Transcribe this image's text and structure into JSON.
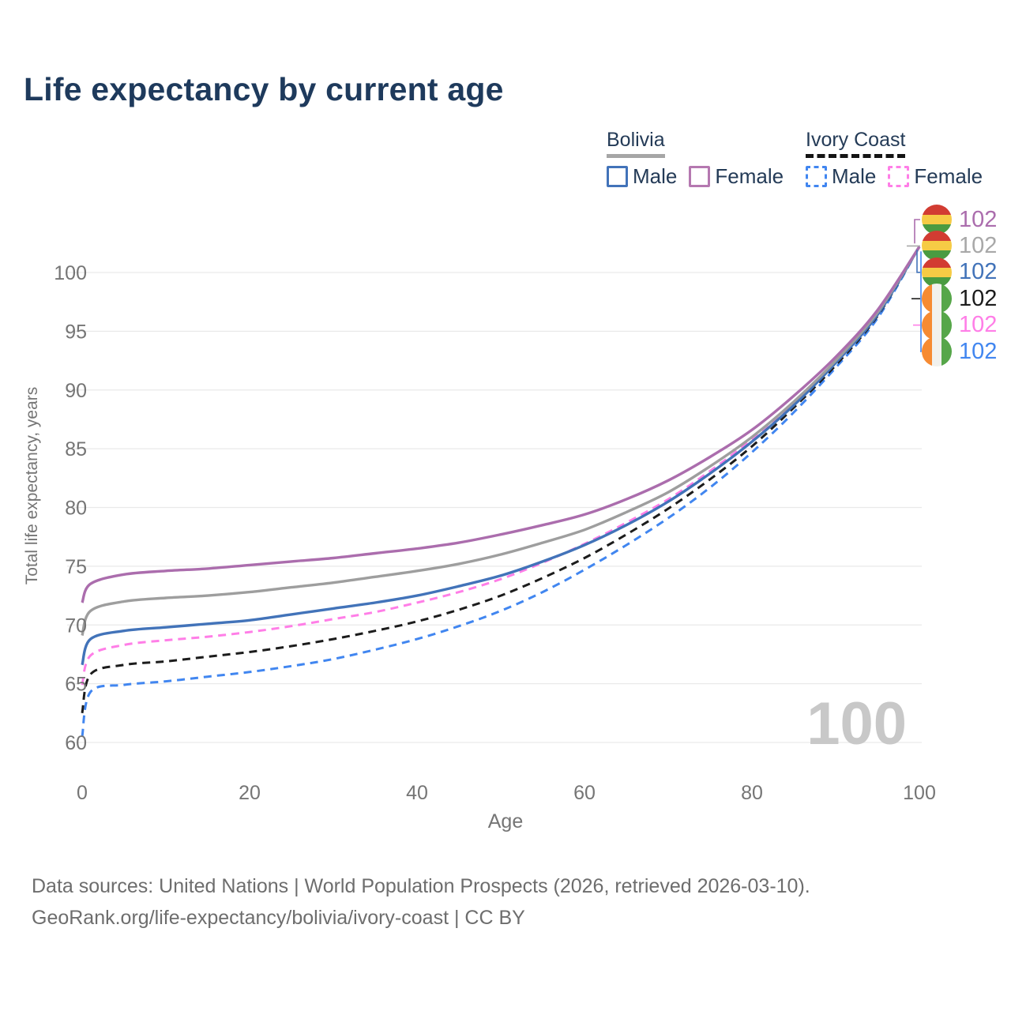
{
  "title": "Life expectancy by current age",
  "legend": {
    "bolivia": {
      "label": "Bolivia",
      "male": "Male",
      "female": "Female"
    },
    "ivory_coast": {
      "label": "Ivory Coast",
      "male": "Male",
      "female": "Female"
    }
  },
  "axes": {
    "x": {
      "label": "Age",
      "ticks": [
        0,
        20,
        40,
        60,
        80,
        100
      ]
    },
    "y": {
      "label": "Total life expectancy, years",
      "ticks": [
        60,
        65,
        70,
        75,
        80,
        85,
        90,
        95,
        100
      ]
    }
  },
  "watermark": "100",
  "colors": {
    "bolivia_female": "#ab6dad",
    "bolivia_all": "#9e9e9e",
    "bolivia_male": "#4273b9",
    "ivory_coast_female": "#ff7ee7",
    "ivory_coast_all": "#1c1c1c",
    "ivory_coast_male": "#4186f0",
    "title": "#1e3a5c",
    "ticks": "#757575",
    "gridline": "#e9e9e9",
    "watermark": "#c8c8c8"
  },
  "end_labels": [
    {
      "flag": "bolivia",
      "value": "102",
      "color": "#ab6dad"
    },
    {
      "flag": "bolivia",
      "value": "102",
      "color": "#a8a8a8"
    },
    {
      "flag": "bolivia",
      "value": "102",
      "color": "#4273b9"
    },
    {
      "flag": "ivory-coast",
      "value": "102",
      "color": "#1c1c1c"
    },
    {
      "flag": "ivory-coast",
      "value": "102",
      "color": "#ff7ee7"
    },
    {
      "flag": "ivory-coast",
      "value": "102",
      "color": "#4186f0"
    }
  ],
  "chart_data": {
    "type": "line",
    "title": "Life expectancy by current age",
    "xlabel": "Age",
    "ylabel": "Total life expectancy, years",
    "xlim": [
      0,
      100
    ],
    "ylim": [
      60,
      103
    ],
    "grid": "horizontal",
    "legend_position": "top-right",
    "x": [
      0,
      1,
      5,
      10,
      15,
      20,
      25,
      30,
      35,
      40,
      45,
      50,
      55,
      60,
      65,
      70,
      75,
      80,
      85,
      90,
      95,
      100
    ],
    "series": [
      {
        "name": "Bolivia Female",
        "color": "#ab6dad",
        "style": "solid",
        "values": [
          71.9,
          73.5,
          74.3,
          74.6,
          74.8,
          75.1,
          75.4,
          75.7,
          76.1,
          76.5,
          77.0,
          77.7,
          78.5,
          79.4,
          80.7,
          82.3,
          84.3,
          86.6,
          89.5,
          92.8,
          96.8,
          102.2
        ]
      },
      {
        "name": "Bolivia",
        "color": "#9e9e9e",
        "style": "solid",
        "values": [
          69.1,
          71.2,
          72.0,
          72.3,
          72.5,
          72.8,
          73.2,
          73.6,
          74.1,
          74.6,
          75.2,
          76.0,
          77.0,
          78.1,
          79.6,
          81.3,
          83.5,
          86.0,
          89.0,
          92.5,
          96.6,
          102.2
        ]
      },
      {
        "name": "Bolivia Male",
        "color": "#4273b9",
        "style": "solid",
        "values": [
          66.6,
          68.8,
          69.5,
          69.8,
          70.1,
          70.4,
          70.9,
          71.4,
          71.9,
          72.5,
          73.3,
          74.2,
          75.4,
          76.8,
          78.5,
          80.5,
          82.9,
          85.6,
          88.7,
          92.3,
          96.4,
          102.2
        ]
      },
      {
        "name": "Ivory Coast Female",
        "color": "#ff7ee7",
        "style": "dashed",
        "values": [
          64.9,
          67.4,
          68.3,
          68.7,
          69.0,
          69.4,
          69.9,
          70.5,
          71.1,
          71.9,
          72.8,
          73.9,
          75.3,
          76.9,
          78.7,
          80.7,
          83.1,
          85.8,
          88.9,
          92.4,
          96.5,
          102.2
        ]
      },
      {
        "name": "Ivory Coast",
        "color": "#1c1c1c",
        "style": "dashed",
        "values": [
          62.5,
          65.8,
          66.6,
          66.9,
          67.3,
          67.7,
          68.2,
          68.8,
          69.5,
          70.3,
          71.3,
          72.5,
          74.0,
          75.7,
          77.7,
          79.9,
          82.4,
          85.2,
          88.5,
          92.1,
          96.3,
          102.2
        ]
      },
      {
        "name": "Ivory Coast Male",
        "color": "#4186f0",
        "style": "dashed",
        "values": [
          60.5,
          64.3,
          64.9,
          65.2,
          65.6,
          66.0,
          66.5,
          67.1,
          67.9,
          68.8,
          69.9,
          71.2,
          72.8,
          74.7,
          76.8,
          79.1,
          81.7,
          84.7,
          88.1,
          91.9,
          96.1,
          102.2
        ]
      }
    ],
    "end_value_label": "102"
  },
  "footer": {
    "line1": "Data sources: United Nations | World Population Prospects (2026, retrieved 2026-03-10).",
    "line2": "GeoRank.org/life-expectancy/bolivia/ivory-coast | CC BY"
  }
}
